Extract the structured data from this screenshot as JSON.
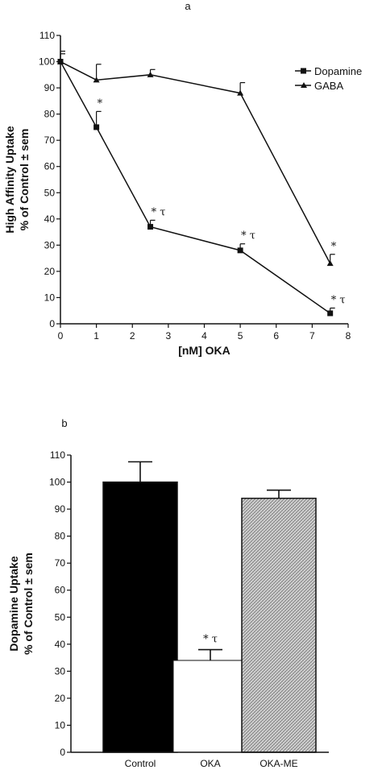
{
  "chart_data": [
    {
      "type": "line",
      "panel_label": "a",
      "xlabel": "[nM] OKA",
      "ylabel": [
        "High Affinity Uptake",
        "% of Control ± sem"
      ],
      "xlim": [
        0,
        8
      ],
      "ylim": [
        0,
        110
      ],
      "xticks": [
        0,
        1,
        2,
        3,
        4,
        5,
        6,
        7,
        8
      ],
      "yticks": [
        0,
        10,
        20,
        30,
        40,
        50,
        60,
        70,
        80,
        90,
        100,
        110
      ],
      "legend_position": "top-right",
      "series": [
        {
          "name": "Dopamine",
          "marker": "square",
          "x": [
            0,
            1,
            2.5,
            5,
            7.5
          ],
          "y": [
            100,
            75,
            37,
            28,
            4
          ],
          "err": [
            3,
            6,
            2.5,
            2.5,
            2
          ],
          "annotations": [
            "",
            "*",
            "* τ",
            "* τ",
            "* τ"
          ]
        },
        {
          "name": "GABA",
          "marker": "triangle",
          "x": [
            0,
            1,
            2.5,
            5,
            7.5
          ],
          "y": [
            100,
            93,
            95,
            88,
            23
          ],
          "err": [
            4,
            6,
            2,
            4,
            3.5
          ],
          "annotations": [
            "",
            "",
            "",
            "",
            "*"
          ]
        }
      ]
    },
    {
      "type": "bar",
      "panel_label": "b",
      "ylabel": [
        "Dopamine Uptake",
        "% of Control ± sem"
      ],
      "ylim": [
        0,
        110
      ],
      "yticks": [
        0,
        10,
        20,
        30,
        40,
        50,
        60,
        70,
        80,
        90,
        100,
        110
      ],
      "categories": [
        "Control",
        "OKA",
        "OKA-ME"
      ],
      "values": [
        100,
        34,
        94
      ],
      "err": [
        7.5,
        4,
        3
      ],
      "fills": [
        "#000000",
        "#ffffff",
        "#c8c8c8"
      ],
      "annotations": [
        "",
        "* τ",
        ""
      ]
    }
  ]
}
